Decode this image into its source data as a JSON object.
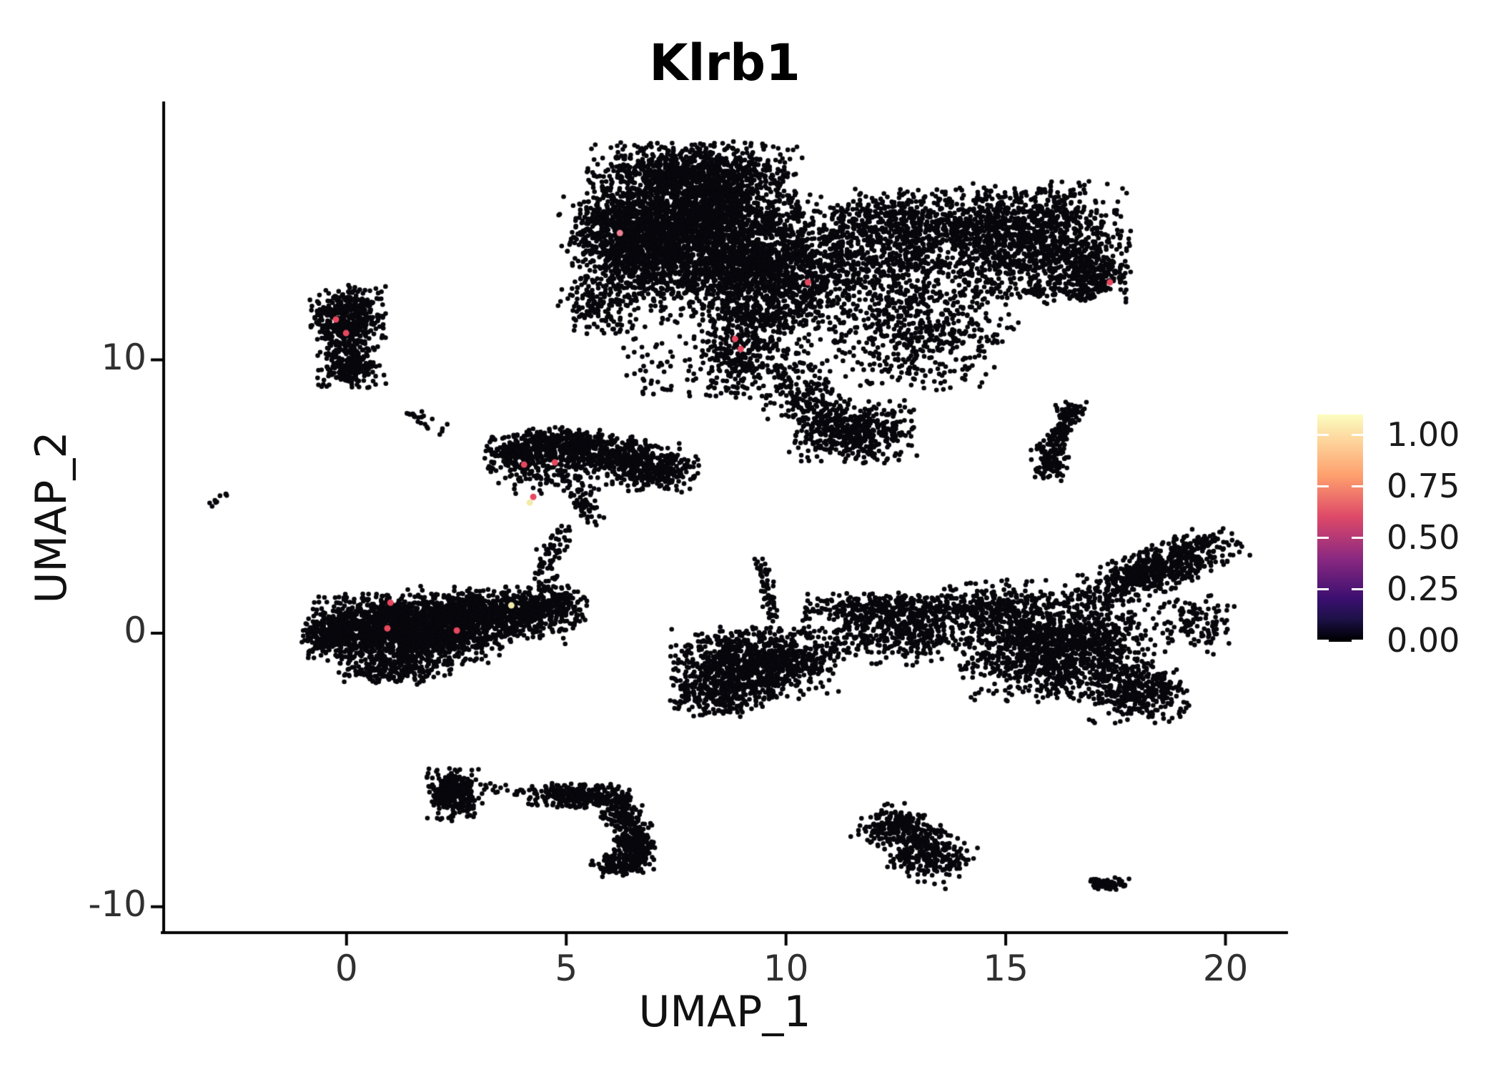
{
  "title": "Klrb1",
  "axes": {
    "x_label": "UMAP_1",
    "y_label": "UMAP_2",
    "x_tick_labels": [
      "0",
      "5",
      "10",
      "15",
      "20"
    ],
    "x_tick_values": [
      0,
      5,
      10,
      15,
      20
    ],
    "y_tick_labels": [
      "10",
      "0",
      "-10"
    ],
    "y_tick_values": [
      10,
      0,
      -10
    ],
    "axis_color": "#000000"
  },
  "legend": {
    "colormap": "magma",
    "tick_labels": [
      "1.00",
      "0.75",
      "0.50",
      "0.25",
      "0.00"
    ],
    "tick_values": [
      1.0,
      0.75,
      0.5,
      0.25,
      0.0
    ],
    "gradient_stops": [
      [
        "0%",
        "#fcfdbf"
      ],
      [
        "27%",
        "#fe9f6d"
      ],
      [
        "45%",
        "#de4968"
      ],
      [
        "63%",
        "#8c2981"
      ],
      [
        "81%",
        "#3b0f70"
      ],
      [
        "90%",
        "#1d1147"
      ],
      [
        "99%",
        "#000004"
      ]
    ]
  },
  "chart_data": {
    "type": "scatter",
    "title": "Klrb1",
    "xlabel": "UMAP_1",
    "ylabel": "UMAP_2",
    "xlim": [
      -4.16,
      21.39
    ],
    "ylim": [
      -10.95,
      19.4
    ],
    "grid": false,
    "legend_position": "right",
    "point_color": "#07070c",
    "point_radius": 3.3,
    "highlight_radius": 4.5,
    "n_points_approx": 22000,
    "clusters": [
      {
        "t": "g",
        "x": 7.9,
        "y": 15.3,
        "sx": 1.15,
        "sy": 1.25,
        "rot": 0,
        "n": 2600
      },
      {
        "t": "g",
        "x": 9.4,
        "y": 13.1,
        "sx": 1.05,
        "sy": 1.15,
        "rot": 0,
        "n": 1500
      },
      {
        "t": "g",
        "x": 6.6,
        "y": 13.8,
        "sx": 0.75,
        "sy": 0.95,
        "rot": 0,
        "n": 700
      },
      {
        "t": "g",
        "x": 5.9,
        "y": 14.8,
        "sx": 0.5,
        "sy": 0.55,
        "rot": 0,
        "n": 200
      },
      {
        "t": "g",
        "x": 5.75,
        "y": 11.9,
        "sx": 0.45,
        "sy": 0.5,
        "rot": 0,
        "n": 130
      },
      {
        "t": "g",
        "x": 8.0,
        "y": 16.9,
        "sx": 0.95,
        "sy": 0.5,
        "rot": 0,
        "n": 380
      },
      {
        "t": "g",
        "x": 9.4,
        "y": 10.3,
        "sx": 0.55,
        "sy": 0.75,
        "rot": 0,
        "n": 200
      },
      {
        "t": "g",
        "x": 8.7,
        "y": 9.9,
        "sx": 0.5,
        "sy": 0.75,
        "rot": 0,
        "n": 140
      },
      {
        "t": "g",
        "x": 7.0,
        "y": 10.0,
        "sx": 0.5,
        "sy": 0.8,
        "rot": 0,
        "n": 40
      },
      {
        "t": "g",
        "x": 12.6,
        "y": 13.4,
        "sx": 1.35,
        "sy": 1.35,
        "rot": 0,
        "n": 1000
      },
      {
        "t": "g",
        "x": 13.4,
        "y": 15.0,
        "sx": 1.7,
        "sy": 0.6,
        "rot": 0,
        "n": 650
      },
      {
        "t": "g",
        "x": 15.8,
        "y": 14.3,
        "sx": 0.95,
        "sy": 1.05,
        "rot": 0,
        "n": 950
      },
      {
        "t": "g",
        "x": 17.0,
        "y": 13.1,
        "sx": 0.4,
        "sy": 0.45,
        "rot": 0,
        "n": 220
      },
      {
        "t": "l",
        "x1": 15.5,
        "y1": 12.55,
        "x2": 16.9,
        "y2": 12.3,
        "j": 0.12,
        "n": 50
      },
      {
        "t": "g",
        "x": 13.1,
        "y": 10.7,
        "sx": 0.95,
        "sy": 0.85,
        "rot": 0,
        "n": 380
      },
      {
        "t": "g",
        "x": 11.5,
        "y": 7.4,
        "sx": 0.7,
        "sy": 0.55,
        "rot": 0,
        "n": 500
      },
      {
        "t": "g",
        "x": 10.4,
        "y": 8.8,
        "sx": 0.45,
        "sy": 0.6,
        "rot": 0,
        "n": 160
      },
      {
        "t": "l",
        "x1": 16.45,
        "y1": 8.1,
        "x2": 16.15,
        "y2": 7.0,
        "j": 0.12,
        "n": 90
      },
      {
        "t": "g",
        "x": 16.0,
        "y": 6.3,
        "sx": 0.22,
        "sy": 0.35,
        "rot": 0,
        "n": 110
      },
      {
        "t": "g",
        "x": 16.45,
        "y": 8.15,
        "sx": 0.18,
        "sy": 0.18,
        "rot": 0,
        "n": 50
      },
      {
        "t": "g",
        "x": 0.05,
        "y": 11.55,
        "sx": 0.42,
        "sy": 0.55,
        "rot": 0,
        "n": 430
      },
      {
        "t": "g",
        "x": 0.1,
        "y": 9.7,
        "sx": 0.38,
        "sy": 0.38,
        "rot": 0,
        "n": 230
      },
      {
        "t": "g",
        "x": -0.02,
        "y": 10.6,
        "sx": 0.26,
        "sy": 0.45,
        "rot": 0,
        "n": 90
      },
      {
        "t": "l",
        "x1": 1.3,
        "y1": 8.1,
        "x2": 2.4,
        "y2": 7.3,
        "j": 0.12,
        "n": 22
      },
      {
        "t": "l",
        "x1": 6.9,
        "y1": 9.3,
        "x2": 7.45,
        "y2": 8.75,
        "j": 0.08,
        "n": 6
      },
      {
        "t": "l",
        "x1": -3.15,
        "y1": 4.65,
        "x2": -2.75,
        "y2": 5.1,
        "j": 0.05,
        "n": 9
      },
      {
        "t": "g",
        "x": 3.95,
        "y": 6.6,
        "sx": 0.38,
        "sy": 0.33,
        "rot": 0,
        "n": 240
      },
      {
        "t": "g",
        "x": 4.85,
        "y": 6.95,
        "sx": 0.5,
        "sy": 0.3,
        "rot": 0,
        "n": 300
      },
      {
        "t": "g",
        "x": 5.85,
        "y": 6.65,
        "sx": 0.5,
        "sy": 0.32,
        "rot": 0,
        "n": 260
      },
      {
        "t": "g",
        "x": 6.7,
        "y": 6.1,
        "sx": 0.45,
        "sy": 0.45,
        "rot": 0,
        "n": 260
      },
      {
        "t": "g",
        "x": 7.3,
        "y": 5.9,
        "sx": 0.35,
        "sy": 0.35,
        "rot": 0,
        "n": 140
      },
      {
        "t": "g",
        "x": 4.6,
        "y": 5.95,
        "sx": 0.65,
        "sy": 0.4,
        "rot": 0,
        "n": 140
      },
      {
        "t": "l",
        "x1": 5.3,
        "y1": 5.2,
        "x2": 5.55,
        "y2": 4.2,
        "j": 0.18,
        "n": 55
      },
      {
        "t": "l",
        "x1": 5.0,
        "y1": 3.9,
        "x2": 4.35,
        "y2": 2.1,
        "j": 0.15,
        "n": 55
      },
      {
        "t": "g",
        "x": 1.35,
        "y": 0.15,
        "sx": 1.05,
        "sy": 0.6,
        "rot": 0,
        "n": 1900
      },
      {
        "t": "g",
        "x": -0.25,
        "y": -0.15,
        "sx": 0.4,
        "sy": 0.33,
        "rot": 0,
        "n": 220
      },
      {
        "t": "g",
        "x": 3.3,
        "y": 0.65,
        "sx": 0.95,
        "sy": 0.5,
        "rot": 0,
        "n": 750
      },
      {
        "t": "g",
        "x": 4.5,
        "y": 1.05,
        "sx": 0.5,
        "sy": 0.32,
        "rot": 0,
        "n": 260
      },
      {
        "t": "g",
        "x": 1.1,
        "y": -1.25,
        "sx": 0.65,
        "sy": 0.3,
        "rot": 0,
        "n": 260
      },
      {
        "t": "l",
        "x1": 4.4,
        "y1": 1.6,
        "x2": 4.75,
        "y2": 2.1,
        "j": 0.1,
        "n": 12
      },
      {
        "t": "g",
        "x": 9.3,
        "y": -1.1,
        "sx": 0.9,
        "sy": 0.62,
        "rot": 0,
        "n": 950
      },
      {
        "t": "l",
        "x1": 9.7,
        "y1": 0.5,
        "x2": 9.45,
        "y2": 2.7,
        "j": 0.09,
        "n": 65
      },
      {
        "t": "g",
        "x": 8.55,
        "y": -2.2,
        "sx": 0.55,
        "sy": 0.4,
        "rot": 0,
        "n": 260
      },
      {
        "t": "g",
        "x": 12.6,
        "y": 0.1,
        "sx": 1.05,
        "sy": 0.6,
        "rot": 0,
        "n": 500
      },
      {
        "t": "g",
        "x": 12.4,
        "y": 0.95,
        "sx": 0.95,
        "sy": 0.25,
        "rot": 0,
        "n": 260
      },
      {
        "t": "g",
        "x": 14.8,
        "y": 1.0,
        "sx": 0.6,
        "sy": 0.5,
        "rot": 0,
        "n": 200
      },
      {
        "t": "g",
        "x": 16.2,
        "y": -0.5,
        "sx": 1.05,
        "sy": 0.95,
        "rot": 0,
        "n": 1400
      },
      {
        "t": "g",
        "x": 18.4,
        "y": 2.3,
        "sx": 1.05,
        "sy": 0.38,
        "rot": 33,
        "n": 650
      },
      {
        "t": "g",
        "x": 18.05,
        "y": -2.25,
        "sx": 0.55,
        "sy": 0.5,
        "rot": 0,
        "n": 300
      },
      {
        "t": "g",
        "x": 19.3,
        "y": 0.3,
        "sx": 0.45,
        "sy": 0.55,
        "rot": 0,
        "n": 120
      },
      {
        "t": "g",
        "x": 12.55,
        "y": -7.15,
        "sx": 0.42,
        "sy": 0.4,
        "rot": -35,
        "n": 240
      },
      {
        "t": "g",
        "x": 13.25,
        "y": -8.1,
        "sx": 0.5,
        "sy": 0.45,
        "rot": -35,
        "n": 260
      },
      {
        "t": "g",
        "x": 2.45,
        "y": -5.9,
        "sx": 0.3,
        "sy": 0.45,
        "rot": 0,
        "n": 300
      },
      {
        "t": "l",
        "x1": 3.1,
        "y1": -5.65,
        "x2": 4.3,
        "y2": -5.85,
        "j": 0.1,
        "n": 22
      },
      {
        "t": "g",
        "x": 5.3,
        "y": -5.95,
        "sx": 0.55,
        "sy": 0.22,
        "rot": 0,
        "n": 300
      },
      {
        "t": "g",
        "x": 6.25,
        "y": -6.6,
        "sx": 0.25,
        "sy": 0.3,
        "rot": 0,
        "n": 130
      },
      {
        "t": "g",
        "x": 6.55,
        "y": -7.8,
        "sx": 0.22,
        "sy": 0.5,
        "rot": 0,
        "n": 280
      },
      {
        "t": "g",
        "x": 6.15,
        "y": -8.5,
        "sx": 0.3,
        "sy": 0.2,
        "rot": 0,
        "n": 90
      },
      {
        "t": "g",
        "x": 17.4,
        "y": -9.15,
        "sx": 0.25,
        "sy": 0.12,
        "rot": 0,
        "n": 70
      },
      {
        "t": "l",
        "x1": 17.0,
        "y1": -9.0,
        "x2": 17.0,
        "y2": -9.0,
        "j": 0,
        "n": 1
      }
    ],
    "highlighted_points": [
      {
        "x": -0.24,
        "y": 11.48,
        "value": 0.7,
        "color": "#e8485f"
      },
      {
        "x": -0.01,
        "y": 10.98,
        "value": 0.7,
        "color": "#e8485f"
      },
      {
        "x": 6.22,
        "y": 14.64,
        "value": 0.8,
        "color": "#ef8092"
      },
      {
        "x": 10.5,
        "y": 12.84,
        "value": 0.7,
        "color": "#e8485f"
      },
      {
        "x": 8.84,
        "y": 10.77,
        "value": 0.7,
        "color": "#e8485f"
      },
      {
        "x": 8.97,
        "y": 10.4,
        "value": 0.7,
        "color": "#e8485f"
      },
      {
        "x": 17.37,
        "y": 12.84,
        "value": 0.7,
        "color": "#e8485f"
      },
      {
        "x": 4.04,
        "y": 6.17,
        "value": 0.7,
        "color": "#e8485f"
      },
      {
        "x": 4.74,
        "y": 6.25,
        "value": 0.7,
        "color": "#e8485f"
      },
      {
        "x": 4.25,
        "y": 4.99,
        "value": 0.7,
        "color": "#e8485f"
      },
      {
        "x": 4.17,
        "y": 4.78,
        "value": 0.97,
        "color": "#f2ebaa"
      },
      {
        "x": 1.0,
        "y": 1.12,
        "value": 0.7,
        "color": "#e8485f"
      },
      {
        "x": 0.93,
        "y": 0.18,
        "value": 0.7,
        "color": "#e8485f"
      },
      {
        "x": 2.51,
        "y": 0.1,
        "value": 0.7,
        "color": "#e8485f"
      },
      {
        "x": 3.75,
        "y": 1.02,
        "value": 0.97,
        "color": "#f2ebaa"
      }
    ]
  }
}
